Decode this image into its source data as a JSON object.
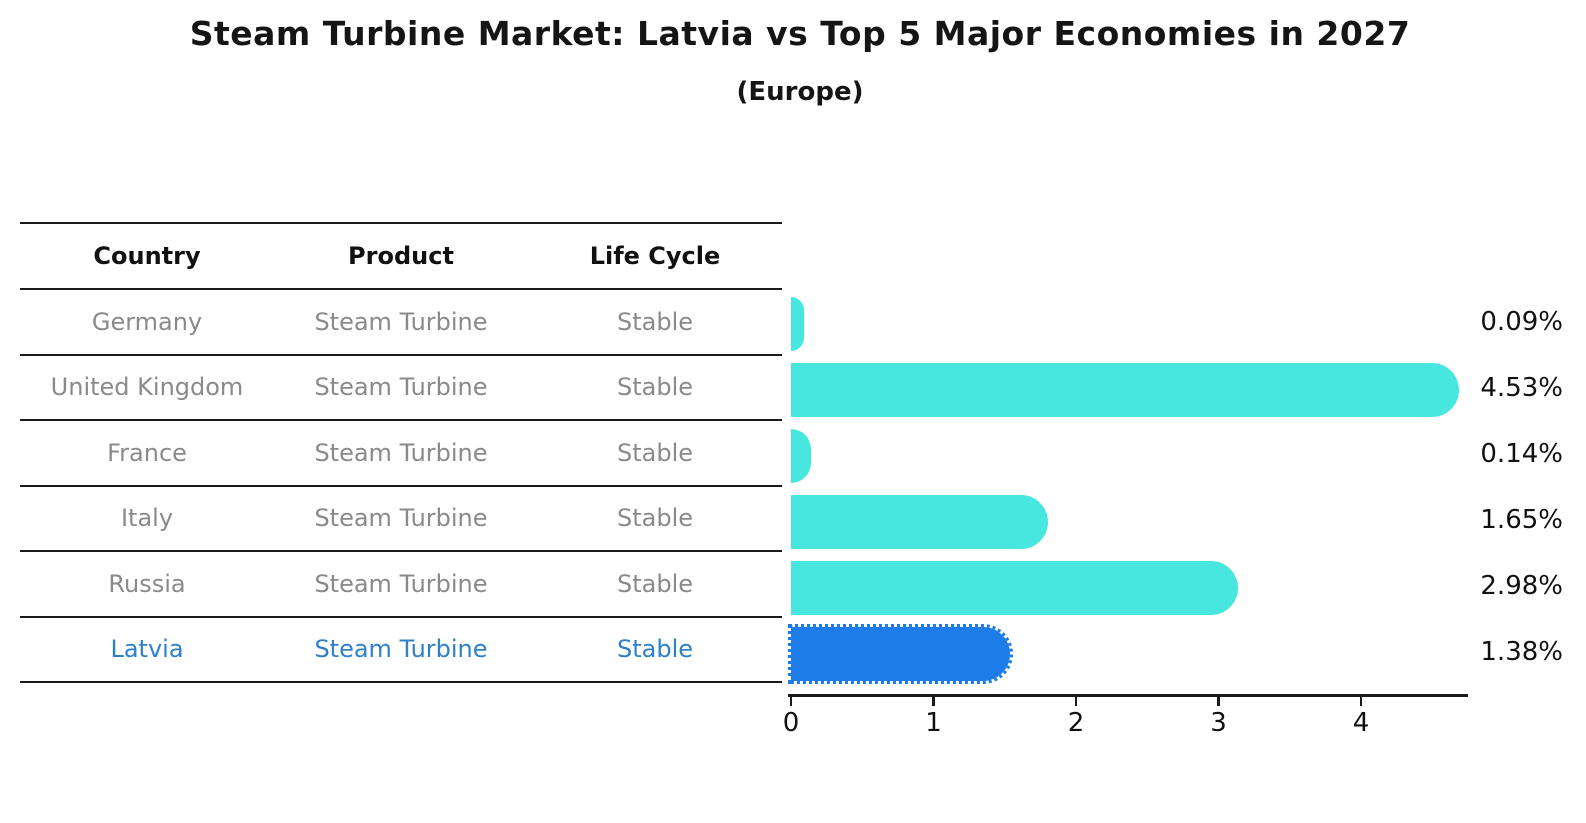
{
  "title": "Steam Turbine Market: Latvia vs Top 5 Major Economies in 2027",
  "subtitle": "(Europe)",
  "table": {
    "headers": [
      "Country",
      "Product",
      "Life Cycle"
    ],
    "rows": [
      {
        "country": "Germany",
        "product": "Steam Turbine",
        "life_cycle": "Stable",
        "highlight": false
      },
      {
        "country": "United Kingdom",
        "product": "Steam Turbine",
        "life_cycle": "Stable",
        "highlight": false
      },
      {
        "country": "France",
        "product": "Steam Turbine",
        "life_cycle": "Stable",
        "highlight": false
      },
      {
        "country": "Italy",
        "product": "Steam Turbine",
        "life_cycle": "Stable",
        "highlight": false
      },
      {
        "country": "Russia",
        "product": "Steam Turbine",
        "life_cycle": "Stable",
        "highlight": true
      }
    ],
    "highlight_row": {
      "country": "Latvia",
      "product": "Steam Turbine",
      "life_cycle": "Stable"
    }
  },
  "chart_data": {
    "type": "bar",
    "orientation": "horizontal",
    "categories": [
      "Germany",
      "United Kingdom",
      "France",
      "Italy",
      "Russia",
      "Latvia"
    ],
    "values": [
      0.09,
      4.53,
      0.14,
      1.65,
      2.98,
      1.38
    ],
    "value_labels": [
      "0.09%",
      "4.53%",
      "0.14%",
      "1.65%",
      "2.98%",
      "1.38%"
    ],
    "highlight_index": 5,
    "xticks": [
      "0",
      "1",
      "2",
      "3",
      "4"
    ],
    "xtick_values": [
      0,
      1,
      2,
      3,
      4
    ],
    "xlim": [
      0,
      4.75
    ],
    "grid": false,
    "legend": false,
    "bar_color": "#47e7df",
    "highlight_bar_color": "#1e7ce8",
    "highlight_text_color": "#2e80cb",
    "axis_color": "#1a1a1a",
    "label_color": "#111111",
    "row_text_color": "#8a8a8a"
  }
}
